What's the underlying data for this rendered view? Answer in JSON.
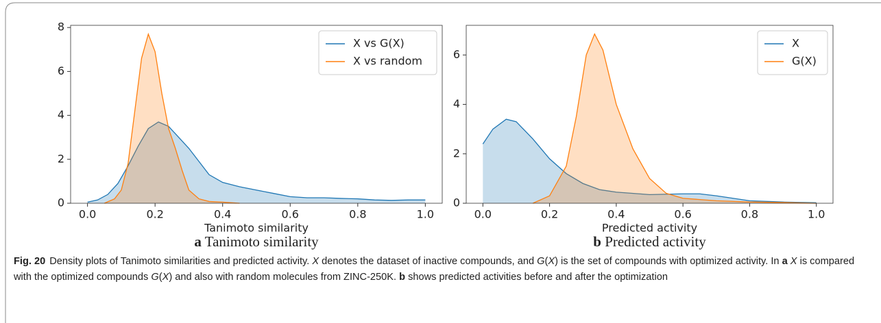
{
  "chart_data": [
    {
      "type": "area",
      "panel": "a",
      "title": "Tanimoto similarity",
      "xlabel": "Tanimoto similarity",
      "xlim": [
        -0.05,
        1.05
      ],
      "ylim": [
        0,
        8.1
      ],
      "xticks": [
        {
          "value": 0,
          "label": "0.0"
        },
        0.2,
        0.4,
        0.6,
        0.8,
        {
          "value": 1,
          "label": "1.0"
        }
      ],
      "yticks": [
        0,
        2,
        4,
        6,
        8
      ],
      "legend": "upper right",
      "series": [
        {
          "name": "X vs G(X)",
          "color": "#1f77b4",
          "x": [
            0,
            0.03,
            0.06,
            0.09,
            0.12,
            0.15,
            0.18,
            0.21,
            0.24,
            0.27,
            0.3,
            0.33,
            0.36,
            0.4,
            0.45,
            0.5,
            0.55,
            0.6,
            0.65,
            0.7,
            0.75,
            0.8,
            0.85,
            0.9,
            0.95,
            1
          ],
          "values": [
            0.05,
            0.15,
            0.4,
            0.9,
            1.7,
            2.6,
            3.4,
            3.7,
            3.5,
            3.0,
            2.5,
            1.9,
            1.3,
            0.95,
            0.75,
            0.6,
            0.45,
            0.3,
            0.25,
            0.25,
            0.22,
            0.2,
            0.15,
            0.13,
            0.15,
            0.15
          ]
        },
        {
          "name": "X vs random",
          "color": "#ff7f0e",
          "x": [
            0.05,
            0.08,
            0.1,
            0.12,
            0.14,
            0.16,
            0.18,
            0.2,
            0.22,
            0.24,
            0.26,
            0.28,
            0.3,
            0.33,
            0.36,
            0.4,
            0.45
          ],
          "values": [
            0,
            0.2,
            0.6,
            1.8,
            4.2,
            6.6,
            7.7,
            6.9,
            5.0,
            3.4,
            2.5,
            1.5,
            0.6,
            0.2,
            0.08,
            0.05,
            0
          ]
        }
      ]
    },
    {
      "type": "area",
      "panel": "b",
      "title": "Predicted activity",
      "xlabel": "Predicted activity",
      "xlim": [
        -0.05,
        1.05
      ],
      "ylim": [
        0,
        7.2
      ],
      "xticks": [
        {
          "value": 0,
          "label": "0.0"
        },
        0.2,
        0.4,
        0.6,
        0.8,
        {
          "value": 1,
          "label": "1.0"
        }
      ],
      "yticks": [
        0,
        2,
        4,
        6
      ],
      "legend": "upper right",
      "series": [
        {
          "name": "X",
          "color": "#1f77b4",
          "x": [
            0,
            0.03,
            0.07,
            0.1,
            0.15,
            0.2,
            0.25,
            0.3,
            0.35,
            0.4,
            0.5,
            0.6,
            0.65,
            0.7,
            0.75,
            0.8,
            0.9,
            1
          ],
          "values": [
            2.4,
            3.0,
            3.4,
            3.3,
            2.6,
            1.8,
            1.2,
            0.8,
            0.55,
            0.45,
            0.35,
            0.38,
            0.38,
            0.3,
            0.2,
            0.1,
            0.05,
            0.02
          ]
        },
        {
          "name": "G(X)",
          "color": "#ff7f0e",
          "x": [
            0.15,
            0.2,
            0.25,
            0.28,
            0.31,
            0.335,
            0.36,
            0.4,
            0.45,
            0.5,
            0.55,
            0.6,
            0.7,
            0.8,
            0.9,
            1
          ],
          "values": [
            0,
            0.3,
            1.5,
            3.5,
            6.0,
            6.85,
            6.2,
            4.0,
            2.2,
            1.0,
            0.4,
            0.2,
            0.1,
            0.05,
            0.03,
            0
          ]
        }
      ]
    }
  ],
  "figure_caption": {
    "label": "Fig. 20",
    "parts": [
      {
        "text": "Density plots of Tanimoto similarities and predicted activity. "
      },
      {
        "text": "X",
        "style": "italic"
      },
      {
        "text": " denotes the dataset of inactive compounds, and "
      },
      {
        "text": "G",
        "style": "italic"
      },
      {
        "text": "("
      },
      {
        "text": "X",
        "style": "italic"
      },
      {
        "text": ") is the set of compounds with optimized activity. In "
      },
      {
        "text": "a",
        "style": "bold"
      },
      {
        "text": " "
      },
      {
        "text": "X",
        "style": "italic"
      },
      {
        "text": " is compared with the optimized compounds "
      },
      {
        "text": "G",
        "style": "italic"
      },
      {
        "text": "("
      },
      {
        "text": "X",
        "style": "italic"
      },
      {
        "text": ") and also with random molecules from ZINC-250K. "
      },
      {
        "text": "b",
        "style": "bold"
      },
      {
        "text": " shows predicted activities before and after the optimization"
      }
    ]
  }
}
